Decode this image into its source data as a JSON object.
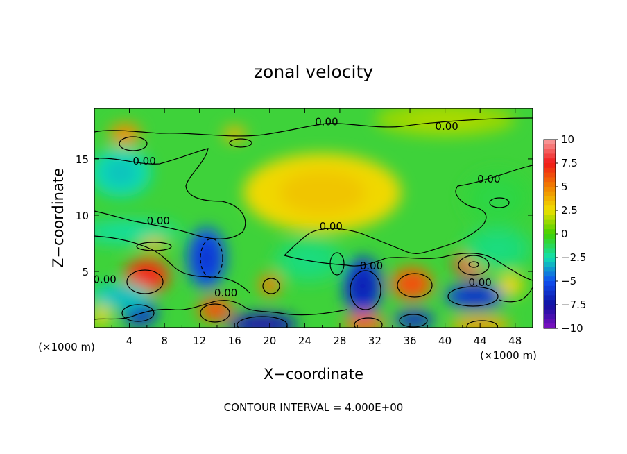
{
  "chart_data": {
    "type": "heatmap",
    "title": "zonal velocity",
    "xlabel": "X−coordinate",
    "ylabel": "Z−coordinate",
    "x_unit_left": "(×1000 m)",
    "x_unit_right": "(×1000 m)",
    "footer": "CONTOUR INTERVAL = 4.000E+00",
    "xlim": [
      0,
      50
    ],
    "ylim": [
      0,
      19.5
    ],
    "x_ticks": [
      4,
      8,
      12,
      16,
      20,
      24,
      28,
      32,
      36,
      40,
      44,
      48
    ],
    "y_ticks": [
      5,
      10,
      15
    ],
    "colorbar": {
      "range": [
        -10,
        10
      ],
      "ticks": [
        10,
        7.5,
        5,
        2.5,
        0,
        -2.5,
        -5,
        -7.5,
        -10
      ],
      "tick_labels": [
        "10",
        "7.5",
        "5",
        "2.5",
        "0",
        "−2.5",
        "−5",
        "−7.5",
        "−10"
      ],
      "colors": [
        "#f8a0a0",
        "#f01818",
        "#f08000",
        "#f0e000",
        "#40d000",
        "#10e0b0",
        "#1050f0",
        "#1010a0",
        "#8010c0"
      ]
    },
    "contour_labels": [
      {
        "text": "0.00",
        "x": 26.5,
        "z": 18.3
      },
      {
        "text": "0.00",
        "x": 40.2,
        "z": 17.9
      },
      {
        "text": "0.00",
        "x": 5.7,
        "z": 14.8
      },
      {
        "text": "0.00",
        "x": 45.0,
        "z": 13.2
      },
      {
        "text": "0.00",
        "x": 7.3,
        "z": 9.5
      },
      {
        "text": "0.00",
        "x": 27.0,
        "z": 9.0
      },
      {
        "text": "0.00",
        "x": 31.6,
        "z": 5.5
      },
      {
        "text": "0.00",
        "x": 44.0,
        "z": 4.0
      },
      {
        "text": "0.00",
        "x": 15.0,
        "z": 3.1
      },
      {
        "text": "0.00",
        "x": 1.2,
        "z": 4.3
      }
    ],
    "blobs": [
      {
        "x": 6.0,
        "z": 4.6,
        "rx": 2.6,
        "rz": 1.6,
        "v": 7.5
      },
      {
        "x": 5.2,
        "z": 1.3,
        "rx": 2.0,
        "rz": 1.2,
        "v": -7.0
      },
      {
        "x": 13.8,
        "z": 1.6,
        "rx": 2.0,
        "rz": 1.1,
        "v": 6.5
      },
      {
        "x": 12.8,
        "z": 6.2,
        "rx": 2.2,
        "rz": 2.7,
        "v": -6.0
      },
      {
        "x": 19.2,
        "z": 0.3,
        "rx": 4.0,
        "rz": 1.0,
        "v": -8.0
      },
      {
        "x": 20.0,
        "z": 3.8,
        "rx": 1.2,
        "rz": 1.0,
        "v": 5.5
      },
      {
        "x": 30.6,
        "z": 3.7,
        "rx": 2.2,
        "rz": 2.6,
        "v": -7.0
      },
      {
        "x": 30.8,
        "z": 0.4,
        "rx": 2.4,
        "rz": 0.9,
        "v": 6.0
      },
      {
        "x": 36.2,
        "z": 3.9,
        "rx": 2.4,
        "rz": 1.5,
        "v": 6.5
      },
      {
        "x": 36.5,
        "z": 0.7,
        "rx": 2.3,
        "rz": 0.8,
        "v": -7.0
      },
      {
        "x": 43.2,
        "z": 5.7,
        "rx": 2.2,
        "rz": 1.2,
        "v": 9.0
      },
      {
        "x": 43.4,
        "z": 2.8,
        "rx": 3.4,
        "rz": 1.1,
        "v": -6.5
      },
      {
        "x": 44.0,
        "z": 0.3,
        "rx": 3.5,
        "rz": 0.8,
        "v": 4.5
      },
      {
        "x": 3.5,
        "z": 17.2,
        "rx": 1.8,
        "rz": 1.0,
        "v": 5.0
      },
      {
        "x": 16.0,
        "z": 17.2,
        "rx": 1.3,
        "rz": 0.7,
        "v": 4.0
      },
      {
        "x": 3.0,
        "z": 13.8,
        "rx": 3.5,
        "rz": 2.2,
        "v": -3.0
      },
      {
        "x": 26.0,
        "z": 12.0,
        "rx": 9.0,
        "rz": 3.5,
        "v": 3.2
      },
      {
        "x": 4.0,
        "z": 8.5,
        "rx": 6.0,
        "rz": 1.2,
        "v": -2.2
      },
      {
        "x": 6.8,
        "z": 7.4,
        "rx": 1.5,
        "rz": 0.5,
        "v": 4.0
      },
      {
        "x": 3.0,
        "z": 2.8,
        "rx": 3.5,
        "rz": 1.2,
        "v": -3.2
      },
      {
        "x": 46.0,
        "z": 7.0,
        "rx": 4.0,
        "rz": 2.0,
        "v": -1.8
      },
      {
        "x": 24.5,
        "z": 6.0,
        "rx": 4.0,
        "rz": 2.0,
        "v": -1.8
      },
      {
        "x": 47.5,
        "z": 3.8,
        "rx": 1.5,
        "rz": 1.0,
        "v": 3.0
      },
      {
        "x": 0.8,
        "z": 1.0,
        "rx": 1.0,
        "rz": 1.0,
        "v": 3.0
      },
      {
        "x": 46.0,
        "z": 11.5,
        "rx": 4.0,
        "rz": 2.5,
        "v": -1.0
      },
      {
        "x": 40.0,
        "z": 18.5,
        "rx": 8.0,
        "rz": 1.5,
        "v": 1.5
      }
    ]
  }
}
